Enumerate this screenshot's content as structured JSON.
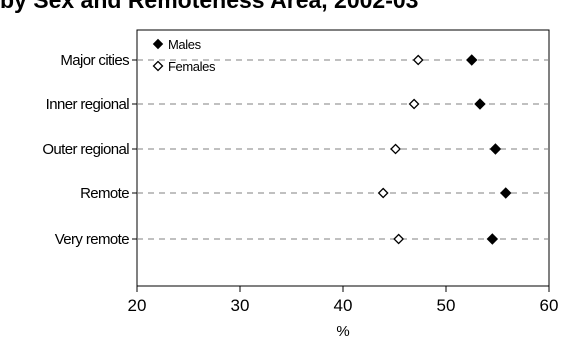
{
  "chart_data": {
    "type": "scatter",
    "title": "by Sex and Remoteness Area, 2002-03",
    "categories": [
      "Major cities",
      "Inner regional",
      "Outer regional",
      "Remote",
      "Very remote"
    ],
    "series": [
      {
        "name": "Males",
        "marker": "filled-diamond",
        "values": [
          52.5,
          53.3,
          54.8,
          55.8,
          54.5
        ]
      },
      {
        "name": "Females",
        "marker": "open-diamond",
        "values": [
          47.3,
          46.9,
          45.1,
          43.9,
          45.4
        ]
      }
    ],
    "xlabel": "%",
    "xlim": [
      20,
      60
    ],
    "xticks": [
      "20",
      "30",
      "40",
      "50",
      "60"
    ],
    "grid": "dashed horizontal line per category",
    "legend": "top-left",
    "colors": {
      "marker": "#000000",
      "grid": "#808080",
      "axis": "#000000"
    }
  }
}
